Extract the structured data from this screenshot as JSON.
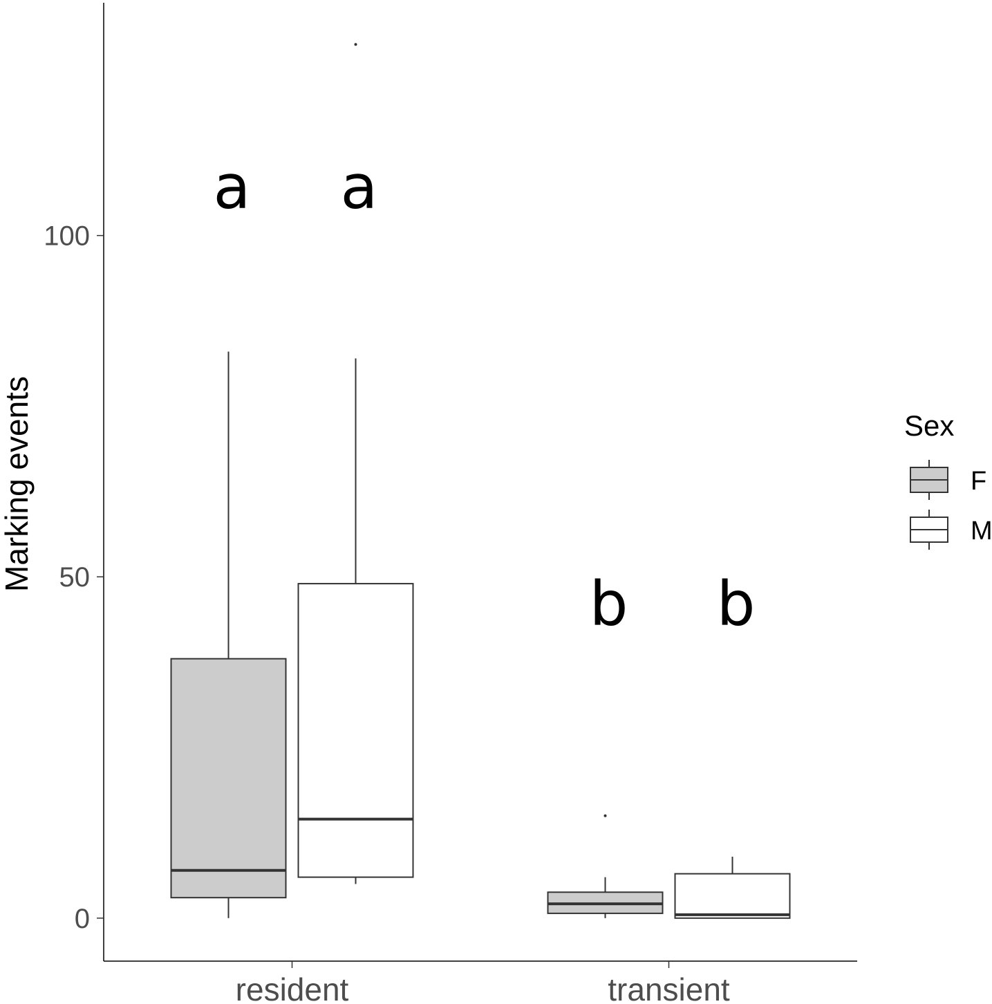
{
  "chart_data": {
    "type": "boxplot",
    "title": "",
    "xlabel": "",
    "ylabel": "Marking events",
    "ylim": [
      -6.3,
      134.1
    ],
    "yticks": [
      0,
      50,
      100
    ],
    "categories": [
      "resident",
      "transient"
    ],
    "legend": {
      "title": "Sex",
      "placement": "right",
      "entries": [
        {
          "name": "F",
          "fill": "#cccccc"
        },
        {
          "name": "M",
          "fill": "#ffffff"
        }
      ]
    },
    "series": [
      {
        "name": "F",
        "fill": "#cccccc",
        "boxes": [
          {
            "category": "resident",
            "min": 0,
            "q1": 3,
            "median": 7,
            "q3": 38,
            "max": 83,
            "outliers": [],
            "letter": "a"
          },
          {
            "category": "transient",
            "min": 0,
            "q1": 0.7,
            "median": 2.1,
            "q3": 3.8,
            "max": 6,
            "outliers": [
              15
            ],
            "letter": "b"
          }
        ]
      },
      {
        "name": "M",
        "fill": "#ffffff",
        "boxes": [
          {
            "category": "resident",
            "min": 5,
            "q1": 6,
            "median": 14.5,
            "q3": 49,
            "max": 82,
            "outliers": [
              128
            ],
            "letter": "a"
          },
          {
            "category": "transient",
            "min": 0,
            "q1": 0,
            "median": 0.5,
            "q3": 6.5,
            "max": 9,
            "outliers": [],
            "letter": "b"
          }
        ]
      }
    ],
    "letter_y": 104,
    "letter_y_transient": 43,
    "grid": false,
    "colors": {
      "line": "#333333",
      "axis": "#000000",
      "tick_text": "#4d4d4d"
    }
  }
}
